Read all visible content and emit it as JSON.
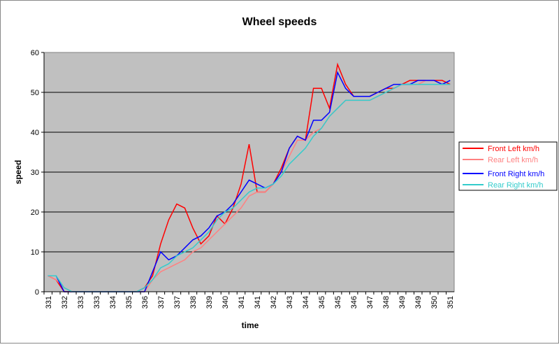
{
  "chart_data": {
    "type": "line",
    "title": "Wheel speeds",
    "x_label": "time",
    "y_label": "speed",
    "categories": [
      "331",
      null,
      "332",
      null,
      "333",
      null,
      "333",
      null,
      "334",
      null,
      "335",
      null,
      "336",
      null,
      "337",
      null,
      "337",
      null,
      "338",
      null,
      "339",
      null,
      "340",
      null,
      "341",
      null,
      "341",
      null,
      "342",
      null,
      "343",
      null,
      "344",
      null,
      "345",
      null,
      "345",
      null,
      "346",
      null,
      "347",
      null,
      "348",
      null,
      "349",
      null,
      "349",
      null,
      "350",
      null,
      "351"
    ],
    "series": [
      {
        "name": "Front Left km/h",
        "color": "#ff0000",
        "values": [
          4,
          3,
          0,
          0,
          0,
          0,
          0,
          0,
          0,
          0,
          0,
          0,
          1,
          4,
          12,
          18,
          22,
          21,
          16,
          12,
          14,
          19,
          17,
          21,
          27,
          37,
          25,
          25,
          27,
          31,
          36,
          39,
          38,
          51,
          51,
          46,
          57,
          52,
          49,
          49,
          49,
          50,
          51,
          51,
          52,
          53,
          53,
          53,
          53,
          53,
          52
        ]
      },
      {
        "name": "Rear Left km/h",
        "color": "#ff8080",
        "values": [
          4,
          3,
          1,
          0,
          0,
          0,
          0,
          0,
          0,
          0,
          0,
          0,
          0,
          3,
          5,
          6,
          7,
          8,
          10,
          11,
          13,
          15,
          17,
          19,
          21,
          24,
          25,
          25,
          27,
          30,
          34,
          38,
          38,
          40,
          41,
          44,
          46,
          48,
          48,
          48,
          48,
          49,
          50,
          51,
          52,
          52,
          52,
          53,
          53,
          52,
          52
        ]
      },
      {
        "name": "Front Right km/h",
        "color": "#0000ff",
        "values": [
          4,
          4,
          0,
          0,
          0,
          0,
          0,
          0,
          0,
          0,
          0,
          0,
          0,
          5,
          10,
          8,
          9,
          11,
          13,
          14,
          16,
          19,
          20,
          22,
          25,
          28,
          27,
          26,
          27,
          30,
          36,
          39,
          38,
          43,
          43,
          45,
          55,
          51,
          49,
          49,
          49,
          50,
          51,
          52,
          52,
          52,
          53,
          53,
          53,
          52,
          53
        ]
      },
      {
        "name": "Rear Right km/h",
        "color": "#33cccc",
        "values": [
          4,
          4,
          1,
          0,
          0,
          0,
          0,
          0,
          0,
          0,
          0,
          0,
          1,
          3,
          6,
          7,
          9,
          10,
          11,
          13,
          15,
          18,
          20,
          21,
          23,
          25,
          26,
          26,
          27,
          29,
          32,
          34,
          36,
          39,
          41,
          44,
          46,
          48,
          48,
          48,
          48,
          49,
          50,
          51,
          52,
          52,
          52,
          52,
          52,
          52,
          52
        ]
      }
    ],
    "ylim": [
      0,
      60
    ],
    "yticks": [
      0,
      10,
      20,
      30,
      40,
      50,
      60
    ],
    "grid": true,
    "legend": "right"
  }
}
